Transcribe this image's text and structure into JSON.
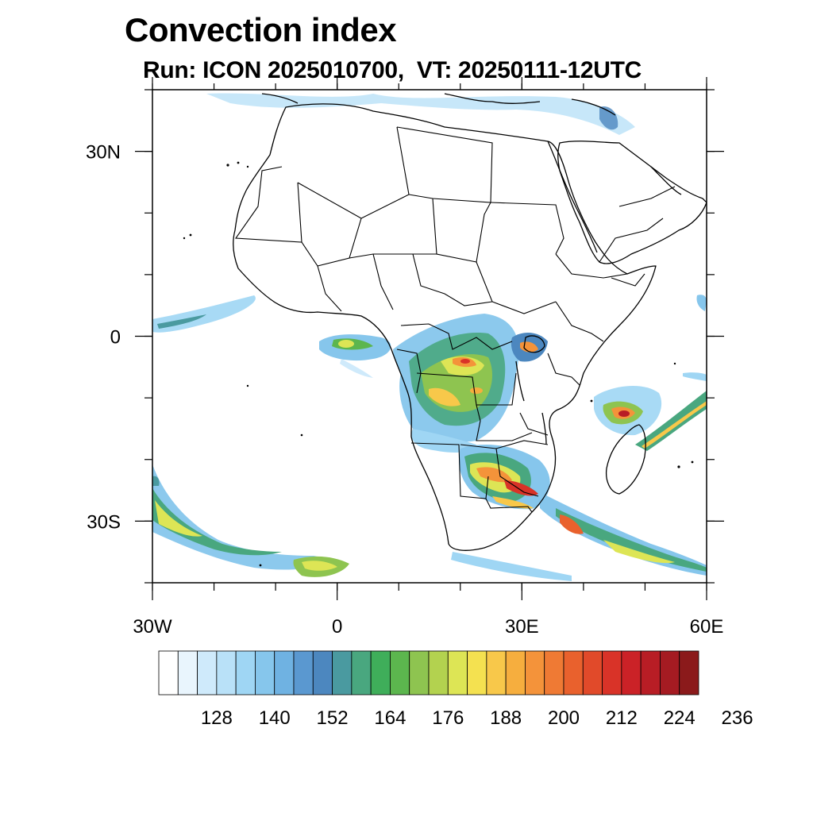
{
  "title": "Convection index",
  "subtitle": "Run: ICON 2025010700,  VT: 20250111-12UTC",
  "map": {
    "lon_range": [
      -30,
      60
    ],
    "lat_range": [
      -40,
      40
    ],
    "x_ticks": [
      {
        "lon": -30,
        "label": "30W"
      },
      {
        "lon": 0,
        "label": "0"
      },
      {
        "lon": 30,
        "label": "30E"
      },
      {
        "lon": 60,
        "label": "60E"
      }
    ],
    "y_ticks": [
      {
        "lat": 30,
        "label": "30N"
      },
      {
        "lat": 0,
        "label": "0"
      },
      {
        "lat": -30,
        "label": "30S"
      }
    ],
    "minor_lon_step": 10,
    "minor_lat_step": 10
  },
  "colorbar": {
    "colors": [
      "#ffffff",
      "#e9f5fd",
      "#cfeafb",
      "#b9e1f8",
      "#9fd6f4",
      "#86c6ec",
      "#6fb2e2",
      "#5a98d0",
      "#4c87bf",
      "#4a9aa0",
      "#49a77f",
      "#3fae5a",
      "#5cb64e",
      "#8ec450",
      "#b3d24f",
      "#dde555",
      "#f4e150",
      "#f8c84a",
      "#f6ae3e",
      "#f4933a",
      "#ef7a34",
      "#e9612d",
      "#e14a2a",
      "#d93328",
      "#cb2227",
      "#b81d25",
      "#a51b22",
      "#8b1a1b"
    ],
    "labels": [
      "128",
      "140",
      "152",
      "164",
      "176",
      "188",
      "200",
      "212",
      "224",
      "236"
    ]
  }
}
